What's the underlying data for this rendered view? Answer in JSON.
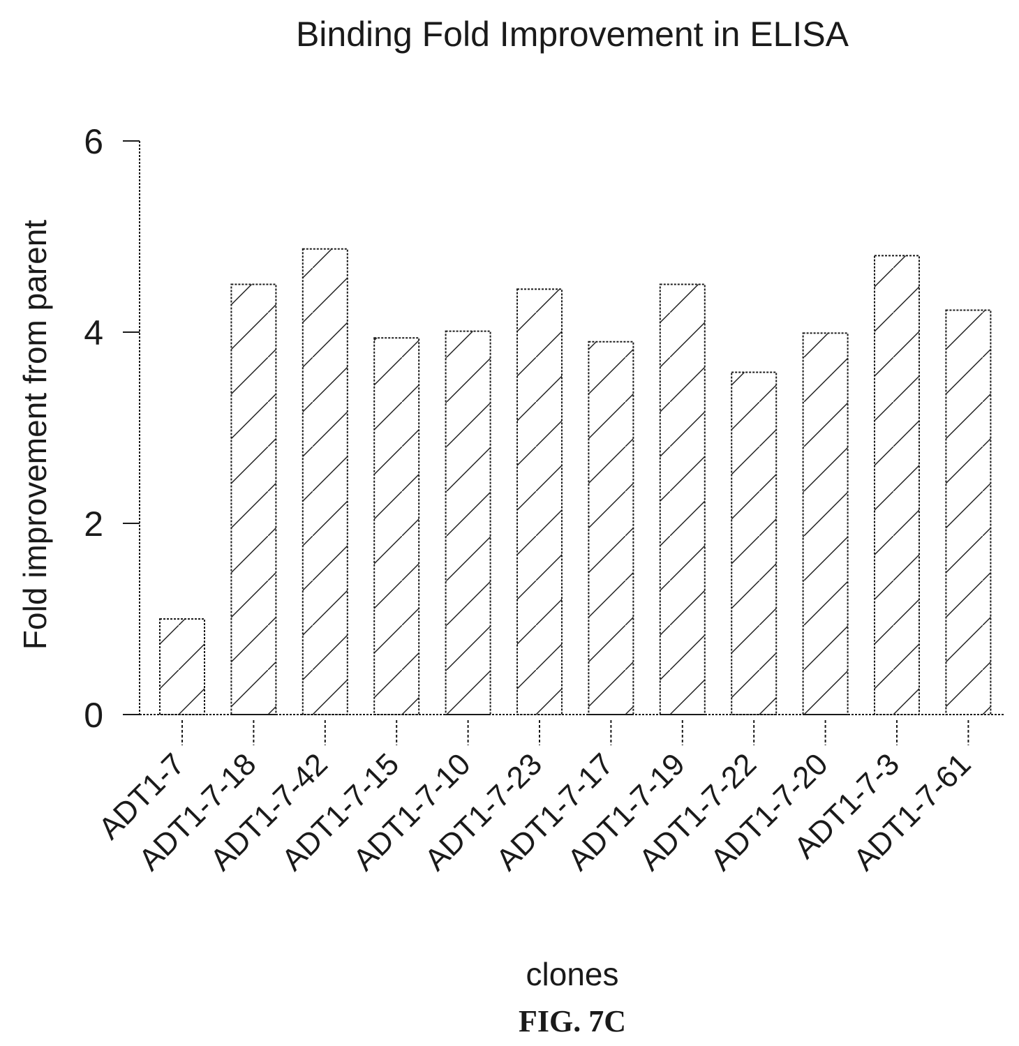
{
  "chart_data": {
    "type": "bar",
    "title": "Binding Fold Improvement in ELISA",
    "xlabel": "clones",
    "ylabel": "Fold improvement from parent",
    "categories": [
      "ADT1-7",
      "ADT1-7-18",
      "ADT1-7-42",
      "ADT1-7-15",
      "ADT1-7-10",
      "ADT1-7-23",
      "ADT1-7-17",
      "ADT1-7-19",
      "ADT1-7-22",
      "ADT1-7-20",
      "ADT1-7-3",
      "ADT1-7-61"
    ],
    "values": [
      1.0,
      4.5,
      4.87,
      3.94,
      4.01,
      4.45,
      3.9,
      4.5,
      3.58,
      3.99,
      4.8,
      4.23
    ],
    "ylim": [
      0,
      6
    ],
    "yticks": [
      0,
      2,
      4,
      6
    ],
    "grid": false,
    "fill_pattern": "diagonal-hatch",
    "bar_color": "#ffffff",
    "line_color": "#1a1a1a"
  },
  "figure_label": "FIG. 7C"
}
